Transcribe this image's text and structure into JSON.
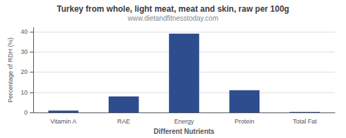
{
  "chart_data": {
    "type": "bar",
    "title": "Turkey from whole, light meat, meat and skin, raw per 100g",
    "subtitle": "www.dietandfitnesstoday.com",
    "xlabel": "Different Nutrients",
    "ylabel": "Percentage of RDH (%)",
    "categories": [
      "Vitamin A",
      "RAE",
      "Energy",
      "Protein",
      "Total Fat"
    ],
    "values": [
      1,
      8,
      39,
      11,
      0.3
    ],
    "color": "#2e4d8e",
    "ylim": [
      0,
      42
    ],
    "yticks": [
      0,
      10,
      20,
      30,
      40
    ],
    "grid": true
  }
}
